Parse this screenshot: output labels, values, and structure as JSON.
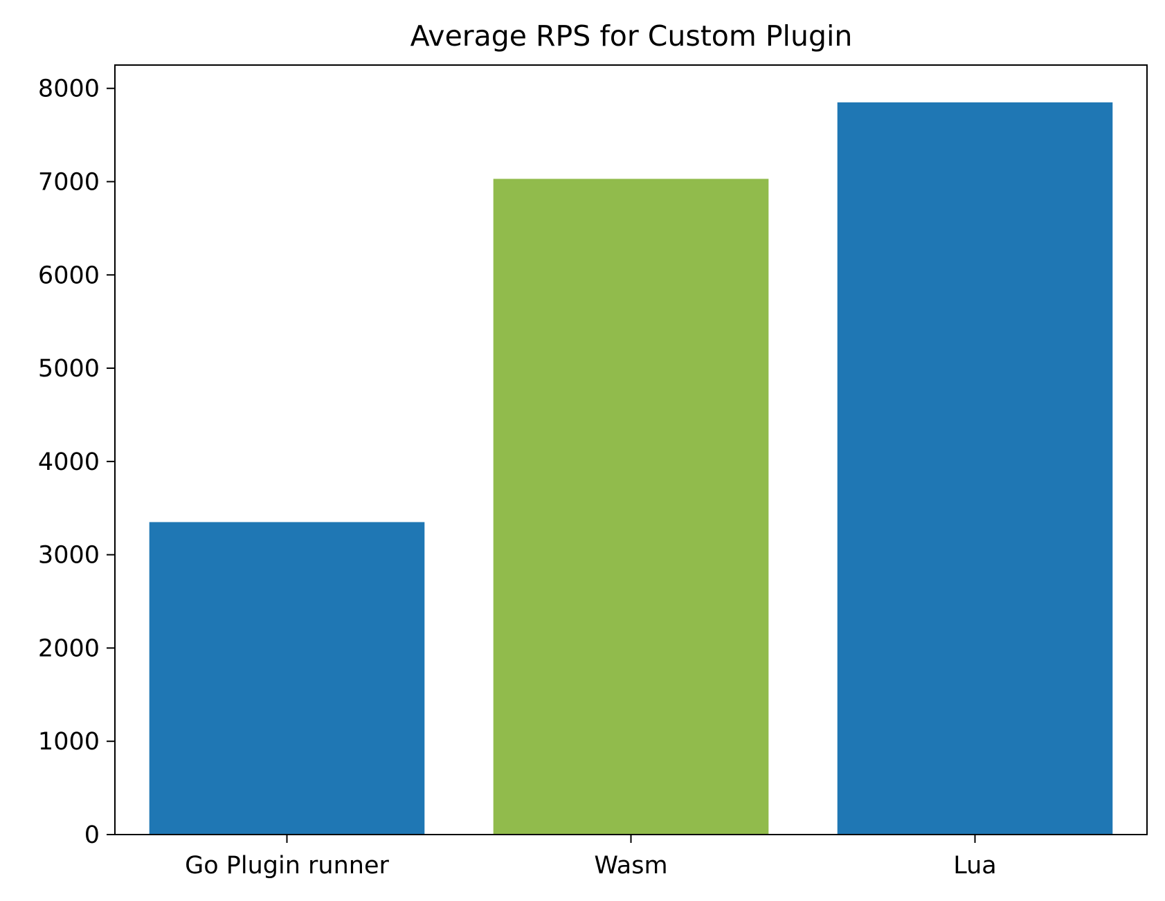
{
  "chart_data": {
    "type": "bar",
    "title": "Average RPS for Custom Plugin",
    "xlabel": "",
    "ylabel": "",
    "categories": [
      "Go Plugin runner",
      "Wasm",
      "Lua"
    ],
    "values": [
      3350,
      7030,
      7850
    ],
    "colors": [
      "#1f77b4",
      "#91bb4c",
      "#1f77b4"
    ],
    "ylim": [
      0,
      8250
    ],
    "yticks": [
      0,
      1000,
      2000,
      3000,
      4000,
      5000,
      6000,
      7000,
      8000
    ],
    "grid": false,
    "legend": null
  }
}
